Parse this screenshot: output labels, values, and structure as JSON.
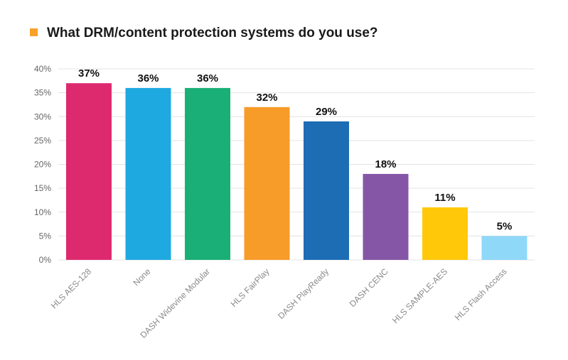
{
  "chart_data": {
    "type": "bar",
    "title": "What DRM/content protection systems do you use?",
    "legend_marker_color": "#F7A12B",
    "categories": [
      "HLS AES-128",
      "None",
      "DASH Widevine Modular",
      "HLS FairPlay",
      "DASH PlayReady",
      "DASH CENC",
      "HLS SAMPLE-AES",
      "HLS Flash Access"
    ],
    "values": [
      37,
      36,
      36,
      32,
      29,
      18,
      11,
      5
    ],
    "value_labels": [
      "37%",
      "36%",
      "36%",
      "32%",
      "29%",
      "18%",
      "11%",
      "5%"
    ],
    "colors": [
      "#DD2A6F",
      "#1FA9E1",
      "#1BAF78",
      "#F79B29",
      "#1D6DB5",
      "#8556A6",
      "#FFC90A",
      "#8FD8F8"
    ],
    "y_ticks": [
      0,
      5,
      10,
      15,
      20,
      25,
      30,
      35,
      40
    ],
    "y_tick_labels": [
      "0%",
      "5%",
      "10%",
      "15%",
      "20%",
      "25%",
      "30%",
      "35%",
      "40%"
    ],
    "ylim": [
      0,
      40
    ],
    "grid": true,
    "xlabel": "",
    "ylabel": ""
  }
}
